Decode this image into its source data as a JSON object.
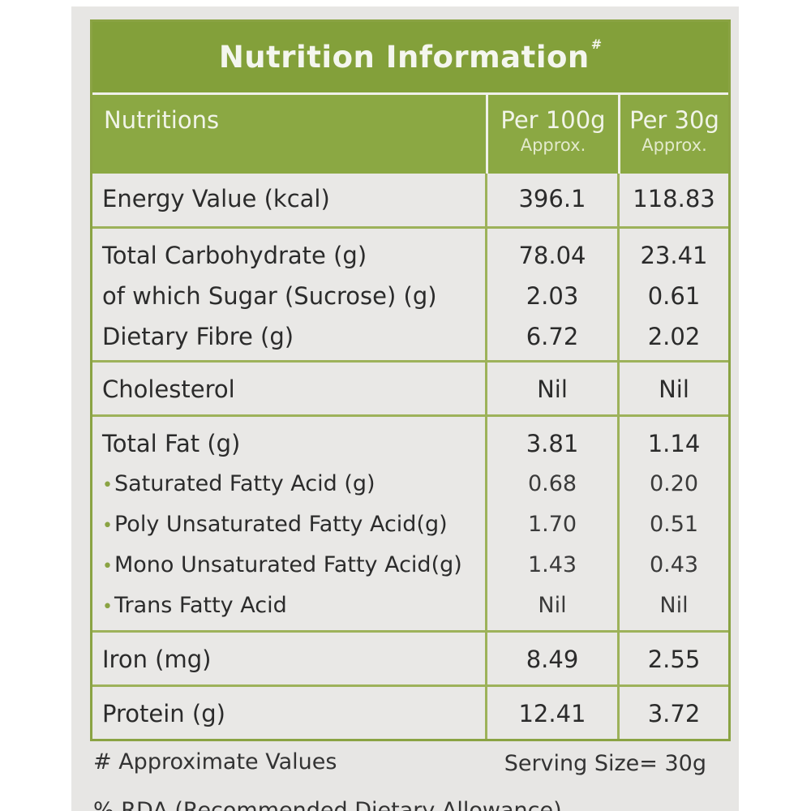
{
  "label": {
    "title": "Nutrition Information",
    "title_mark": "#",
    "headers": {
      "nutrient": "Nutritions",
      "col1_main": "Per 100g",
      "col1_sub": "Approx.",
      "col2_main": "Per 30g",
      "col2_sub": "Approx."
    },
    "groups": [
      {
        "rows": [
          {
            "name": "Energy Value (kcal)",
            "per100": "396.1",
            "per30": "118.83"
          }
        ]
      },
      {
        "rows": [
          {
            "name": "Total Carbohydrate (g)",
            "per100": "78.04",
            "per30": "23.41"
          },
          {
            "name": "of which Sugar (Sucrose) (g)",
            "per100": "2.03",
            "per30": "0.61"
          },
          {
            "name": "Dietary Fibre (g)",
            "per100": "6.72",
            "per30": "2.02"
          }
        ]
      },
      {
        "rows": [
          {
            "name": "Cholesterol",
            "per100": "Nil",
            "per30": "Nil"
          }
        ]
      },
      {
        "rows": [
          {
            "name": "Total Fat (g)",
            "per100": "3.81",
            "per30": "1.14"
          },
          {
            "name": "Saturated Fatty Acid (g)",
            "per100": "0.68",
            "per30": "0.20"
          },
          {
            "name": "Poly Unsaturated Fatty Acid(g)",
            "per100": "1.70",
            "per30": "0.51"
          },
          {
            "name": "Mono Unsaturated Fatty Acid(g)",
            "per100": "1.43",
            "per30": "0.43"
          },
          {
            "name": "Trans Fatty Acid",
            "per100": "Nil",
            "per30": "Nil"
          }
        ]
      },
      {
        "rows": [
          {
            "name": "Iron (mg)",
            "per100": "8.49",
            "per30": "2.55"
          }
        ]
      },
      {
        "rows": [
          {
            "name": "Protein (g)",
            "per100": "12.41",
            "per30": "3.72"
          }
        ]
      }
    ],
    "bullet_glyph": "•",
    "footnote": "# Approximate Values",
    "serving_size": "Serving Size= 30g",
    "cut_text": "% RDA (Recommended Dietary Allowance) ..."
  },
  "colors": {
    "header_green": "#83a03a",
    "border_green": "#8aa343",
    "panel_gray": "#e9e8e6"
  }
}
